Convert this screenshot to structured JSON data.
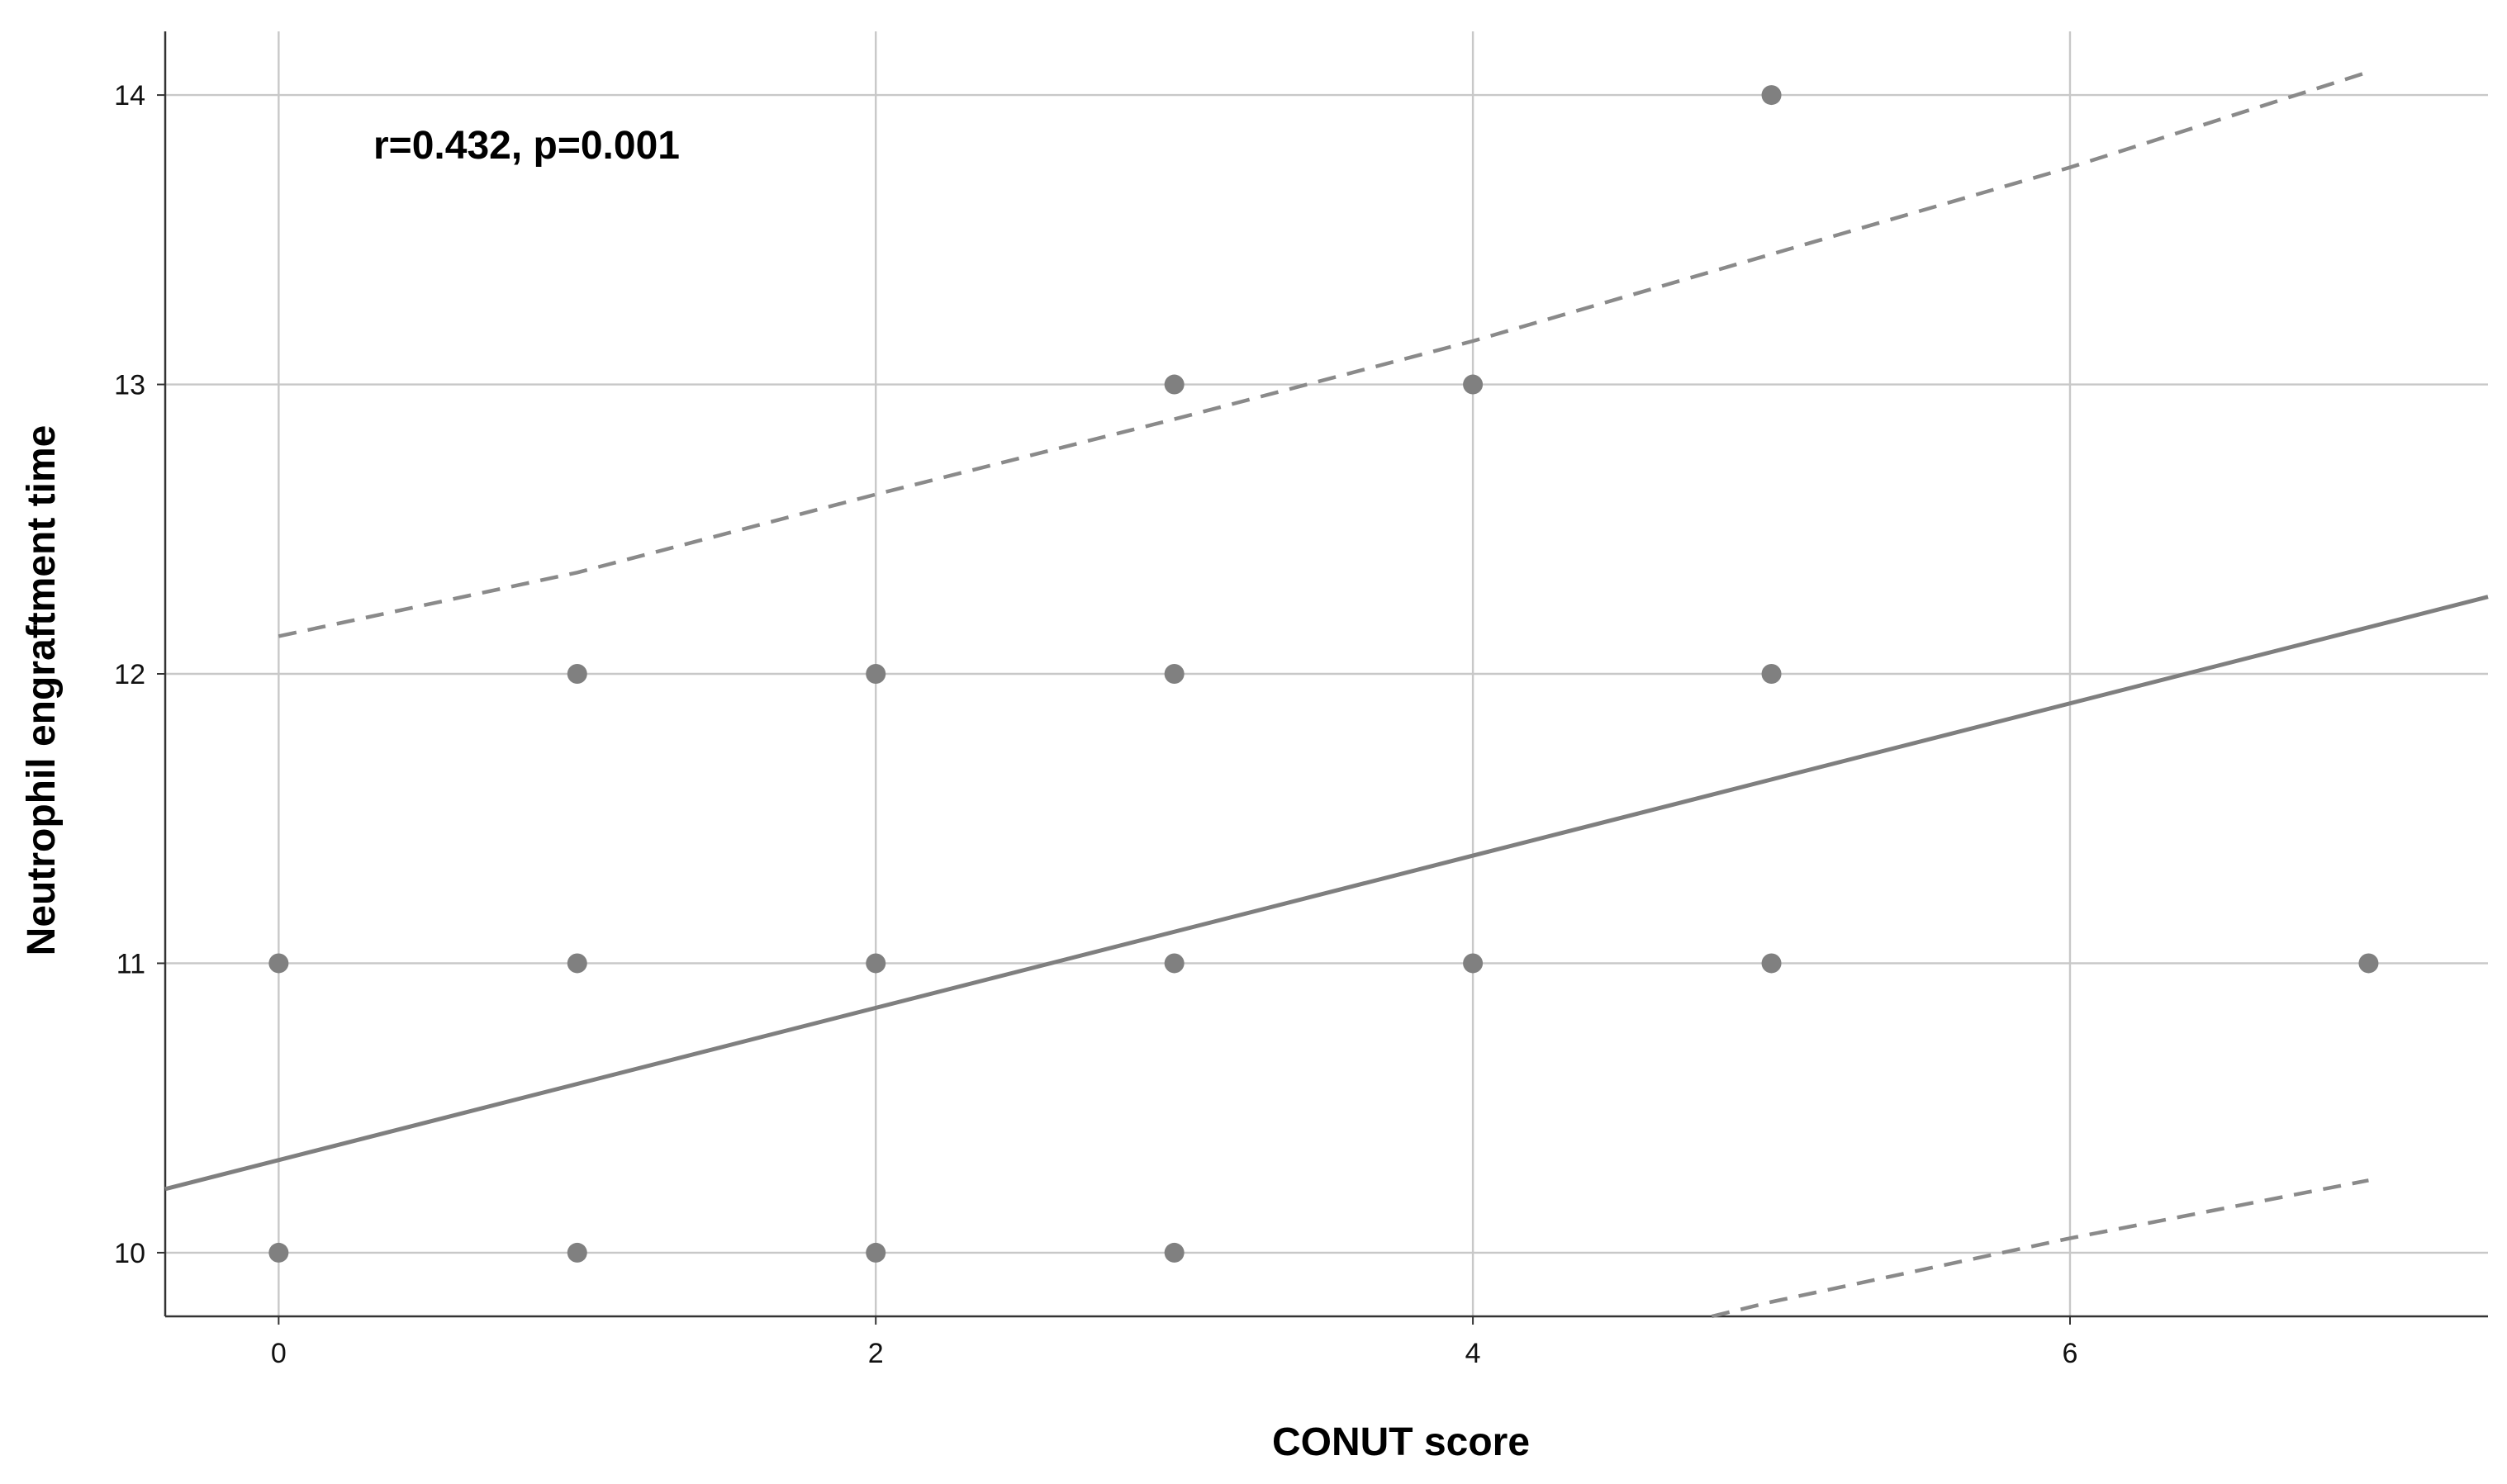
{
  "chart_data": {
    "type": "scatter",
    "title": "",
    "xlabel": "CONUT score",
    "ylabel": "Neutrophil engraftment time",
    "annotation": "r=0.432, p=0.001",
    "xlim": [
      -0.38,
      7.4
    ],
    "ylim": [
      9.78,
      14.22
    ],
    "x_ticks": [
      0,
      2,
      4,
      6
    ],
    "y_ticks": [
      10,
      11,
      12,
      13,
      14
    ],
    "grid": true,
    "legend": "none",
    "points": [
      {
        "x": 0,
        "y": 10
      },
      {
        "x": 1,
        "y": 10
      },
      {
        "x": 2,
        "y": 10
      },
      {
        "x": 3,
        "y": 10
      },
      {
        "x": 0,
        "y": 11
      },
      {
        "x": 1,
        "y": 11
      },
      {
        "x": 2,
        "y": 11
      },
      {
        "x": 3,
        "y": 11
      },
      {
        "x": 4,
        "y": 11
      },
      {
        "x": 5,
        "y": 11
      },
      {
        "x": 7,
        "y": 11
      },
      {
        "x": 1,
        "y": 12
      },
      {
        "x": 2,
        "y": 12
      },
      {
        "x": 3,
        "y": 12
      },
      {
        "x": 5,
        "y": 12
      },
      {
        "x": 3,
        "y": 13
      },
      {
        "x": 4,
        "y": 13
      },
      {
        "x": 5,
        "y": 14
      }
    ],
    "fit_line": {
      "intercept": 10.32,
      "slope": 0.263,
      "x_range": [
        -0.38,
        7.4
      ]
    },
    "prediction_bands": {
      "upper": [
        {
          "x": 0,
          "y": 12.13
        },
        {
          "x": 1,
          "y": 12.35
        },
        {
          "x": 2,
          "y": 12.62
        },
        {
          "x": 3,
          "y": 12.88
        },
        {
          "x": 4,
          "y": 13.15
        },
        {
          "x": 5,
          "y": 13.45
        },
        {
          "x": 6,
          "y": 13.75
        },
        {
          "x": 7,
          "y": 14.08
        }
      ],
      "lower": [
        {
          "x": 4.8,
          "y": 9.78
        },
        {
          "x": 5,
          "y": 9.83
        },
        {
          "x": 6,
          "y": 10.05
        },
        {
          "x": 7,
          "y": 10.25
        }
      ]
    },
    "colors": {
      "points": "#808080",
      "fit_line": "#7f7f7f",
      "bands": "#8a8a8a",
      "grid": "#c8c8c8",
      "axis": "#333333"
    }
  }
}
